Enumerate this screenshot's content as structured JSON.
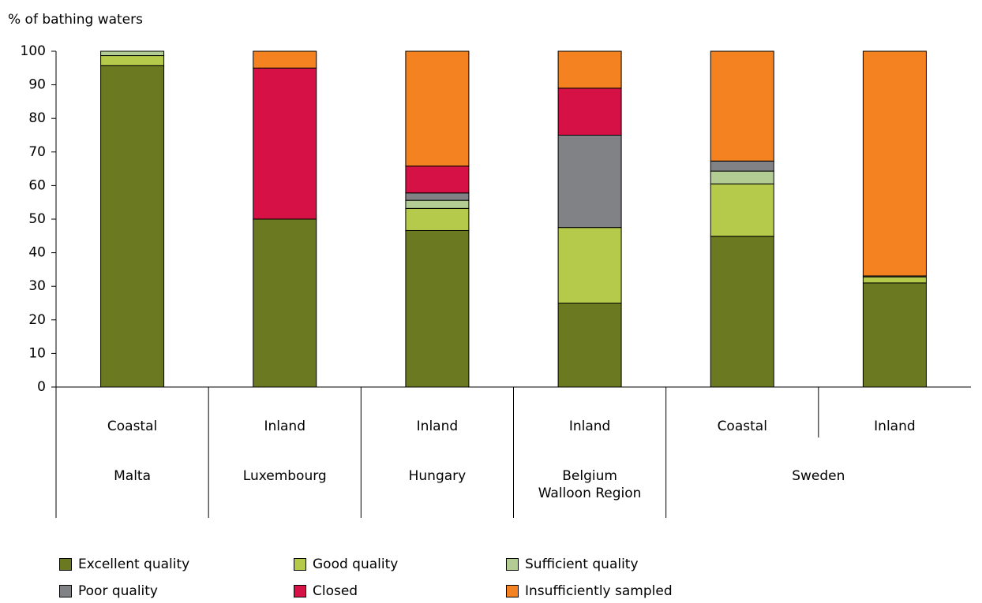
{
  "chart_data": {
    "type": "bar",
    "stacked": true,
    "ylabel": "% of bathing waters",
    "ylim": [
      0,
      100
    ],
    "yticks": [
      0,
      10,
      20,
      30,
      40,
      50,
      60,
      70,
      80,
      90,
      100
    ],
    "grid": false,
    "legend_position": "bottom",
    "categories": [
      "Coastal",
      "Inland",
      "Inland",
      "Inland",
      "Coastal",
      "Inland"
    ],
    "groups": [
      {
        "label": "Malta",
        "span": 1
      },
      {
        "label": "Luxembourg",
        "span": 1
      },
      {
        "label": "Hungary",
        "span": 1
      },
      {
        "label": "Belgium\nWalloon Region",
        "span": 1
      },
      {
        "label": "Sweden",
        "span": 2
      }
    ],
    "series": [
      {
        "name": "Excellent quality",
        "color": "#6b7a20",
        "values": [
          95.7,
          50.0,
          46.6,
          25.0,
          44.9,
          31.0
        ]
      },
      {
        "name": "Good quality",
        "color": "#b5c94b",
        "values": [
          3.0,
          0.0,
          6.6,
          22.5,
          15.6,
          1.8
        ]
      },
      {
        "name": "Sufficient quality",
        "color": "#b2cc94",
        "values": [
          1.3,
          0.0,
          2.4,
          0.0,
          3.8,
          0.0
        ]
      },
      {
        "name": "Poor quality",
        "color": "#808285",
        "values": [
          0.0,
          0.0,
          2.2,
          27.5,
          3.0,
          0.3
        ]
      },
      {
        "name": "Closed",
        "color": "#d51145",
        "values": [
          0.0,
          45.0,
          8.0,
          14.0,
          0.0,
          0.0
        ]
      },
      {
        "name": "Insufficiently sampled",
        "color": "#f58220",
        "values": [
          0.0,
          5.0,
          34.2,
          11.0,
          32.7,
          66.9
        ]
      }
    ]
  }
}
